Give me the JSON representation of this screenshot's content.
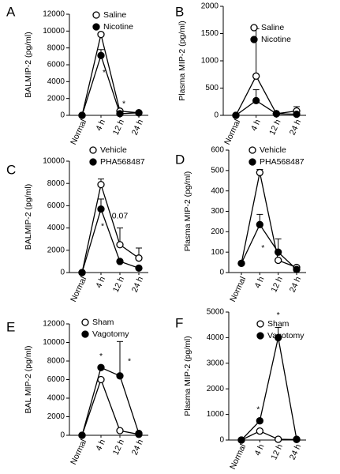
{
  "chart_data": [
    {
      "type": "line",
      "panel": "A",
      "ylabel": "BALMIP-2 (pg/ml)",
      "categories": [
        "Normal",
        "4 h",
        "12 h",
        "24 h"
      ],
      "ylim": [
        0,
        12000
      ],
      "yticks": [
        0,
        2000,
        4000,
        6000,
        8000,
        10000,
        12000
      ],
      "series": [
        {
          "name": "Saline",
          "color": "#000000",
          "fill": "#ffffff",
          "values": [
            0,
            9600,
            500,
            300
          ],
          "errors": [
            null,
            200,
            null,
            null
          ]
        },
        {
          "name": "Nicotine",
          "color": "#000000",
          "fill": "#000000",
          "values": [
            0,
            7100,
            200,
            300
          ],
          "errors": [
            null,
            700,
            null,
            null
          ]
        }
      ],
      "annotations": [
        "*",
        "*"
      ]
    },
    {
      "type": "line",
      "panel": "B",
      "ylabel": "Plasma MIP-2 (pg/ml)",
      "categories": [
        "Normal",
        "4 h",
        "12 h",
        "24 h"
      ],
      "ylim": [
        0,
        2000
      ],
      "yticks": [
        0,
        500,
        1000,
        1500,
        2000
      ],
      "series": [
        {
          "name": "Saline",
          "color": "#000000",
          "fill": "#ffffff",
          "values": [
            0,
            720,
            30,
            80
          ],
          "errors": [
            null,
            870,
            null,
            80
          ]
        },
        {
          "name": "Nicotine",
          "color": "#000000",
          "fill": "#000000",
          "values": [
            0,
            270,
            30,
            20
          ],
          "errors": [
            null,
            200,
            null,
            null
          ]
        }
      ],
      "annotations": []
    },
    {
      "type": "line",
      "panel": "C",
      "ylabel": "BALMIP-2 (pg/ml)",
      "categories": [
        "Normal",
        "4 h",
        "12 h",
        "24 h"
      ],
      "ylim": [
        0,
        10000
      ],
      "yticks": [
        0,
        2000,
        4000,
        6000,
        8000,
        10000
      ],
      "series": [
        {
          "name": "Vehicle",
          "color": "#000000",
          "fill": "#ffffff",
          "values": [
            0,
            7900,
            2500,
            1300
          ],
          "errors": [
            null,
            500,
            1500,
            900
          ]
        },
        {
          "name": "PHA568487",
          "color": "#000000",
          "fill": "#000000",
          "values": [
            0,
            5700,
            1000,
            400
          ],
          "errors": [
            null,
            900,
            null,
            null
          ]
        }
      ],
      "annotations": [
        "*",
        "0.07"
      ]
    },
    {
      "type": "line",
      "panel": "D",
      "ylabel": "Plasma MIP-2 (pg/ml)",
      "categories": [
        "Normal",
        "4 h",
        "12 h",
        "24 h"
      ],
      "ylim": [
        0,
        600
      ],
      "yticks": [
        0,
        100,
        200,
        300,
        400,
        500,
        600
      ],
      "series": [
        {
          "name": "Vehicle",
          "color": "#000000",
          "fill": "#ffffff",
          "values": [
            45,
            490,
            60,
            25
          ],
          "errors": [
            null,
            15,
            null,
            null
          ]
        },
        {
          "name": "PHA568487",
          "color": "#000000",
          "fill": "#000000",
          "values": [
            45,
            235,
            100,
            15
          ],
          "errors": [
            null,
            50,
            65,
            null
          ]
        }
      ],
      "annotations": [
        "*"
      ]
    },
    {
      "type": "line",
      "panel": "E",
      "ylabel": "BAL MIP-2 (pg/ml)",
      "categories": [
        "Normal",
        "4 h",
        "12 h",
        "24 h"
      ],
      "ylim": [
        0,
        12000
      ],
      "yticks": [
        0,
        2000,
        4000,
        6000,
        8000,
        10000,
        12000
      ],
      "series": [
        {
          "name": "Sham",
          "color": "#000000",
          "fill": "#ffffff",
          "values": [
            0,
            6000,
            500,
            100
          ],
          "errors": [
            null,
            null,
            null,
            null
          ]
        },
        {
          "name": "Vagotomy",
          "color": "#000000",
          "fill": "#000000",
          "values": [
            0,
            7300,
            6400,
            200
          ],
          "errors": [
            null,
            null,
            3700,
            null
          ]
        }
      ],
      "annotations": [
        "*",
        "*"
      ]
    },
    {
      "type": "line",
      "panel": "F",
      "ylabel": "Plasma MIP-2 (pg/ml)",
      "categories": [
        "Normal",
        "4 h",
        "12 h",
        "24 h"
      ],
      "ylim": [
        0,
        5000
      ],
      "yticks": [
        0,
        1000,
        2000,
        3000,
        4000,
        5000
      ],
      "series": [
        {
          "name": "Sham",
          "color": "#000000",
          "fill": "#ffffff",
          "values": [
            0,
            350,
            30,
            20
          ],
          "errors": [
            null,
            null,
            null,
            null
          ]
        },
        {
          "name": "Vagotomy",
          "color": "#000000",
          "fill": "#000000",
          "values": [
            0,
            750,
            4000,
            30
          ],
          "errors": [
            null,
            null,
            400,
            null
          ]
        }
      ],
      "annotations": [
        "*",
        "*"
      ]
    }
  ]
}
